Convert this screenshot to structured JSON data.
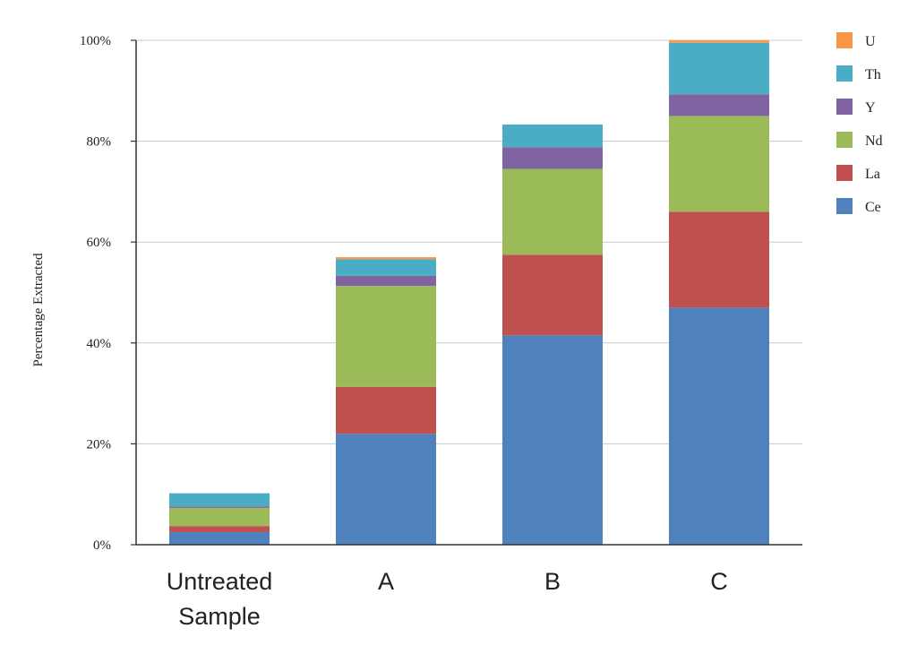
{
  "chart_data": {
    "type": "bar",
    "stacked": true,
    "title": "",
    "xlabel": "",
    "ylabel": "Percentage Extracted",
    "ylim": [
      0,
      100
    ],
    "y_tick_values": [
      0,
      20,
      40,
      60,
      80,
      100
    ],
    "y_tick_labels": [
      "0%",
      "20%",
      "40%",
      "60%",
      "80%",
      "100%"
    ],
    "grid": true,
    "legend_position": "top-right",
    "categories": [
      [
        "Untreated",
        "Sample"
      ],
      [
        "A"
      ],
      [
        "B"
      ],
      [
        "C"
      ]
    ],
    "series": [
      {
        "name": "Ce",
        "color": "#4f81bd",
        "values": [
          2.5,
          22,
          41.5,
          47
        ]
      },
      {
        "name": "La",
        "color": "#c0504d",
        "values": [
          1.2,
          9.3,
          16,
          19
        ]
      },
      {
        "name": "Nd",
        "color": "#9bbb59",
        "values": [
          3.6,
          20,
          17,
          19
        ]
      },
      {
        "name": "Y",
        "color": "#8064a2",
        "values": [
          0.3,
          2,
          4.3,
          4.3
        ]
      },
      {
        "name": "Th",
        "color": "#4bacc6",
        "values": [
          2.6,
          3.3,
          4.5,
          10.2
        ]
      },
      {
        "name": "U",
        "color": "#f79646",
        "values": [
          0,
          0.4,
          0,
          0.5
        ]
      }
    ],
    "legend_order": [
      "U",
      "Th",
      "Y",
      "Nd",
      "La",
      "Ce"
    ]
  }
}
